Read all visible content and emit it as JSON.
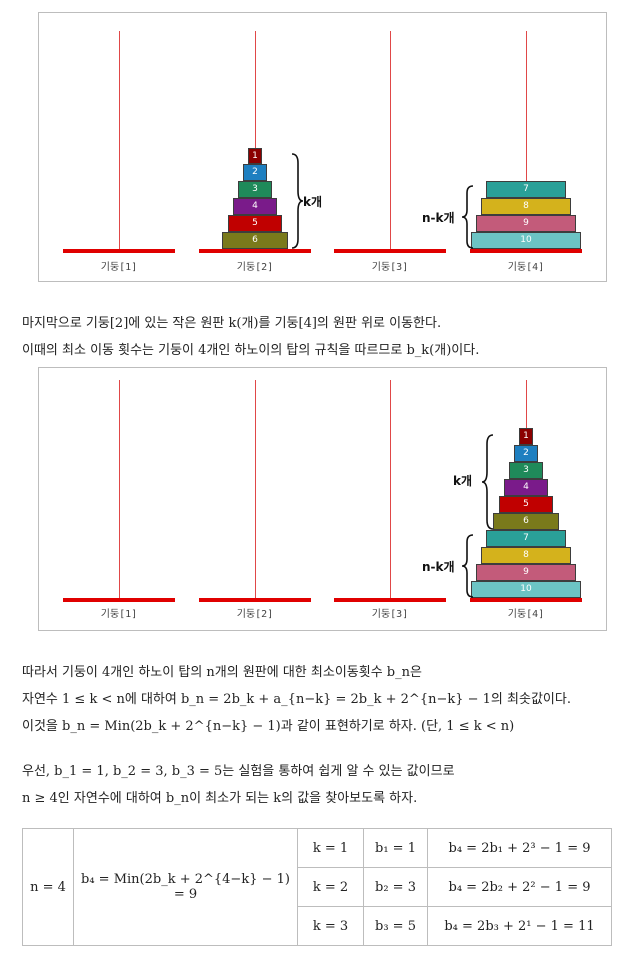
{
  "panel1": {
    "poles": [
      "기둥[1]",
      "기둥[2]",
      "기둥[3]",
      "기둥[4]"
    ],
    "pole2_disks": [
      "1",
      "2",
      "3",
      "4",
      "5",
      "6"
    ],
    "pole4_disks": [
      "7",
      "8",
      "9",
      "10"
    ],
    "brace_k": "k개",
    "brace_nk": "n-k개"
  },
  "paragraph1": {
    "line1": "마지막으로 기둥[2]에 있는 작은 원판 k(개)를 기둥[4]의 원판 위로 이동한다.",
    "line2": "이때의 최소 이동 횟수는 기둥이 4개인 하노이의 탑의 규칙을 따르므로 b_k(개)이다."
  },
  "panel2": {
    "poles": [
      "기둥[1]",
      "기둥[2]",
      "기둥[3]",
      "기둥[4]"
    ],
    "pole4_disks": [
      "1",
      "2",
      "3",
      "4",
      "5",
      "6",
      "7",
      "8",
      "9",
      "10"
    ],
    "brace_k": "k개",
    "brace_nk": "n-k개"
  },
  "paragraph2": {
    "line1": "따라서 기둥이 4개인 하노이 탑의 n개의 원판에 대한 최소이동횟수 b_n은",
    "line2": "자연수 1 ≤ k < n에 대하여 b_n = 2b_k + a_{n−k} = 2b_k + 2^{n−k} − 1의 최솟값이다.",
    "line3": "이것을 b_n = Min(2b_k + 2^{n−k} − 1)과 같이 표현하기로 하자. (단, 1 ≤ k < n)"
  },
  "paragraph3": {
    "line1": "우선, b_1 = 1, b_2 = 3, b_3 = 5는 실험을 통하여 쉽게 알 수 있는 값이므로",
    "line2": "n ≥ 4인 자연수에 대하여 b_n이 최소가 되는 k의 값을 찾아보도록 하자."
  },
  "table": {
    "n_cell": "n = 4",
    "formula": "b₄ = Min(2b_k + 2^{4−k} − 1) = 9",
    "rows": [
      {
        "k": "k = 1",
        "b": "b₁ = 1",
        "calc": "b₄ = 2b₁ + 2³ − 1 = 9"
      },
      {
        "k": "k = 2",
        "b": "b₂ = 3",
        "calc": "b₄ = 2b₂ + 2² − 1 = 9"
      },
      {
        "k": "k = 3",
        "b": "b₃ = 5",
        "calc": "b₄ = 2b₃ + 2¹ − 1 = 11"
      }
    ]
  },
  "colors": {
    "disk1": "#8b0000",
    "disk2": "#1e7fc0",
    "disk3": "#1f8a5a",
    "disk4": "#7a1b8a",
    "disk5": "#c00000",
    "disk6": "#7a7a1b",
    "disk7": "#2aa098",
    "disk8": "#d4b21c",
    "disk9": "#c35b7a",
    "disk10": "#6cc4c4"
  }
}
